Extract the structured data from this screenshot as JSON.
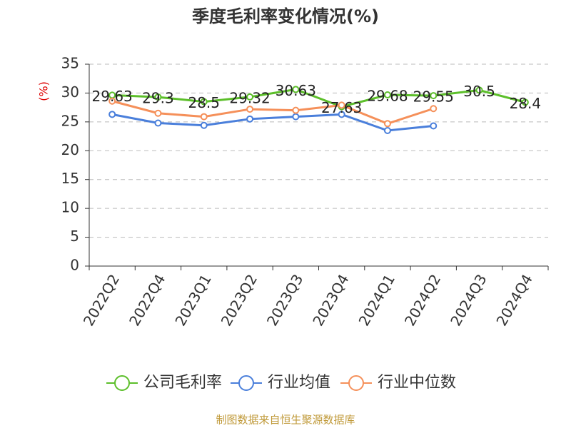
{
  "chart_data": {
    "type": "line",
    "title": "季度毛利率变化情况(%)",
    "y_label": "(%)",
    "categories": [
      "2022Q2",
      "2022Q4",
      "2023Q1",
      "2023Q2",
      "2023Q3",
      "2023Q4",
      "2024Q1",
      "2024Q2",
      "2024Q3",
      "2024Q4"
    ],
    "series": [
      {
        "name": "公司毛利率",
        "color": "#5cbf2a",
        "values": [
          29.63,
          29.3,
          28.5,
          29.32,
          30.63,
          27.63,
          29.68,
          29.55,
          30.5,
          28.4
        ],
        "data_labels": true
      },
      {
        "name": "行业均值",
        "color": "#4a7fdb",
        "values": [
          26.3,
          24.8,
          24.4,
          25.5,
          25.9,
          26.3,
          23.5,
          24.3,
          null,
          null
        ]
      },
      {
        "name": "行业中位数",
        "color": "#f5905a",
        "values": [
          28.6,
          26.5,
          25.9,
          27.2,
          27.0,
          27.9,
          24.7,
          27.3,
          null,
          null
        ]
      }
    ],
    "ylim": [
      0,
      35
    ],
    "yticks": [
      0,
      5,
      10,
      15,
      20,
      25,
      30,
      35
    ],
    "grid": true,
    "source": "制图数据来自恒生聚源数据库"
  }
}
